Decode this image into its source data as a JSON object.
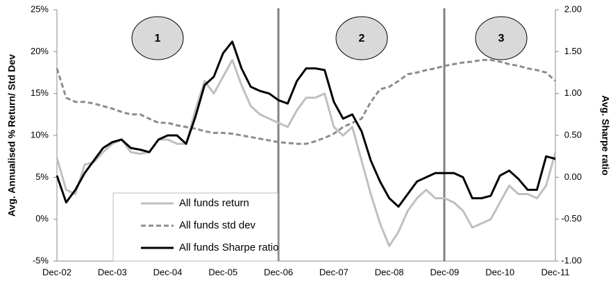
{
  "chart_data": {
    "type": "line",
    "y_label": "Avg. Annualised % Return/ Std Dev",
    "y2_label": "Avg. Sharpe ratio",
    "annotations": [
      "1",
      "2",
      "3"
    ],
    "categories": [
      "Dec-02",
      null,
      null,
      null,
      null,
      null,
      "Dec-03",
      null,
      null,
      null,
      null,
      null,
      "Dec-04",
      null,
      null,
      null,
      null,
      null,
      "Dec-05",
      null,
      null,
      null,
      null,
      null,
      "Dec-06",
      null,
      null,
      null,
      null,
      null,
      "Dec-07",
      null,
      null,
      null,
      null,
      null,
      "Dec-08",
      null,
      null,
      null,
      null,
      null,
      "Dec-09",
      null,
      null,
      null,
      null,
      null,
      "Dec-10",
      null,
      null,
      null,
      null,
      null,
      "Dec-11"
    ],
    "ylim": [
      -5,
      25
    ],
    "yticks": [
      {
        "value": -5,
        "label": "-5%"
      },
      {
        "value": 0,
        "label": "0%"
      },
      {
        "value": 5,
        "label": "5%"
      },
      {
        "value": 10,
        "label": "10%"
      },
      {
        "value": 15,
        "label": "15%"
      },
      {
        "value": 20,
        "label": "20%"
      },
      {
        "value": 25,
        "label": "25%"
      }
    ],
    "y2lim": [
      -1,
      2
    ],
    "y2ticks": [
      {
        "value": -1,
        "label": "-1.00"
      },
      {
        "value": -0.5,
        "label": "-0.50"
      },
      {
        "value": 0,
        "label": "0.00"
      },
      {
        "value": 0.5,
        "label": "0.50"
      },
      {
        "value": 1,
        "label": "1.00"
      },
      {
        "value": 1.5,
        "label": "1.50"
      },
      {
        "value": 2,
        "label": "2.00"
      }
    ],
    "series": [
      {
        "name": "All funds return",
        "color": "#bfbfbf",
        "dash": false,
        "values": [
          7.3,
          3.5,
          3,
          6.5,
          6.8,
          8,
          9,
          9.5,
          8,
          7.8,
          8,
          9.5,
          9.5,
          9,
          9,
          13,
          16.5,
          15,
          17,
          19,
          16,
          13.5,
          12.5,
          12,
          11.5,
          11,
          13,
          14.5,
          14.5,
          15,
          11,
          10,
          11,
          7,
          3,
          -0.5,
          -3.2,
          -1.5,
          1,
          2.5,
          3.5,
          2.5,
          2.5,
          2,
          1,
          -1,
          -0.5,
          0,
          2,
          4,
          3,
          3,
          2.5,
          4,
          8
        ]
      },
      {
        "name": "All funds std dev",
        "color": "#8c8c8c",
        "dash": true,
        "values": [
          18,
          14.5,
          14,
          14,
          13.8,
          13.5,
          13.2,
          12.8,
          12.5,
          12.5,
          12,
          11.5,
          11.5,
          11.2,
          11,
          10.8,
          10.5,
          10.3,
          10.3,
          10.2,
          10,
          9.8,
          9.6,
          9.4,
          9.2,
          9.1,
          9,
          9,
          9.3,
          9.7,
          10.2,
          11,
          11.5,
          12,
          14,
          15.5,
          15.8,
          16.5,
          17.3,
          17.5,
          17.8,
          18,
          18.3,
          18.5,
          18.7,
          18.8,
          19,
          19,
          18.8,
          18.5,
          18.3,
          18,
          17.8,
          17.5,
          16.5
        ]
      },
      {
        "name": "All funds Sharpe ratio",
        "color": "#000000",
        "dash": false,
        "axis": "y2",
        "values": [
          0.02,
          -0.3,
          -0.15,
          0.05,
          0.2,
          0.35,
          0.42,
          0.45,
          0.35,
          0.33,
          0.3,
          0.45,
          0.5,
          0.5,
          0.4,
          0.72,
          1.1,
          1.2,
          1.48,
          1.62,
          1.3,
          1.08,
          1.03,
          1.0,
          0.92,
          0.88,
          1.15,
          1.3,
          1.3,
          1.28,
          0.9,
          0.7,
          0.75,
          0.55,
          0.2,
          -0.05,
          -0.25,
          -0.35,
          -0.2,
          -0.05,
          0.0,
          0.05,
          0.05,
          0.05,
          0.0,
          -0.25,
          -0.25,
          -0.22,
          0.02,
          0.08,
          -0.02,
          -0.15,
          -0.15,
          0.25,
          0.22
        ]
      }
    ]
  }
}
